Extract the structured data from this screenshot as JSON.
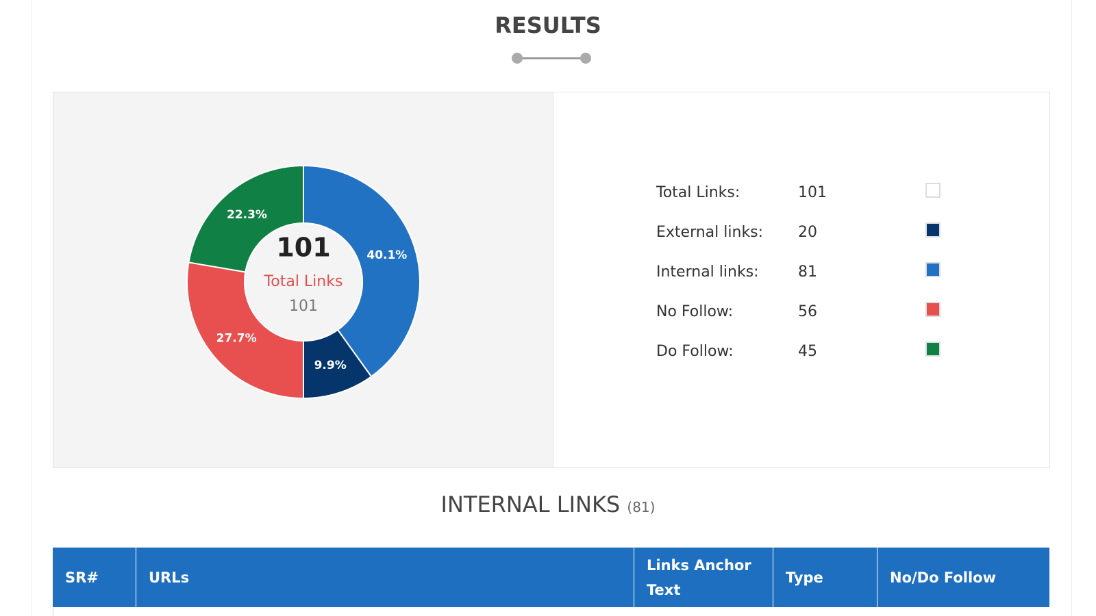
{
  "header": {
    "title": "RESULTS"
  },
  "chart_data": {
    "type": "pie",
    "donut": true,
    "values": [
      40.1,
      9.9,
      27.7,
      22.3
    ],
    "value_labels": [
      "40.1%",
      "9.9%",
      "27.7%",
      "22.3%"
    ],
    "colors": [
      "#2272c3",
      "#05356b",
      "#e84f4f",
      "#118044"
    ],
    "center": {
      "value": 101,
      "label": "Total Links",
      "sub": 101
    }
  },
  "summary": {
    "rows": [
      {
        "label": "Total Links:",
        "value": 101,
        "color": "#ffffff"
      },
      {
        "label": "External links:",
        "value": 20,
        "color": "#05356b"
      },
      {
        "label": "Internal links:",
        "value": 81,
        "color": "#2272c3"
      },
      {
        "label": "No Follow:",
        "value": 56,
        "color": "#e84f4f"
      },
      {
        "label": "Do Follow:",
        "value": 45,
        "color": "#118044"
      }
    ]
  },
  "section": {
    "title": "INTERNAL LINKS",
    "count": "(81)"
  },
  "table": {
    "headers": [
      "SR#",
      "URLs",
      "Links Anchor Text",
      "Type",
      "No/Do Follow"
    ]
  }
}
